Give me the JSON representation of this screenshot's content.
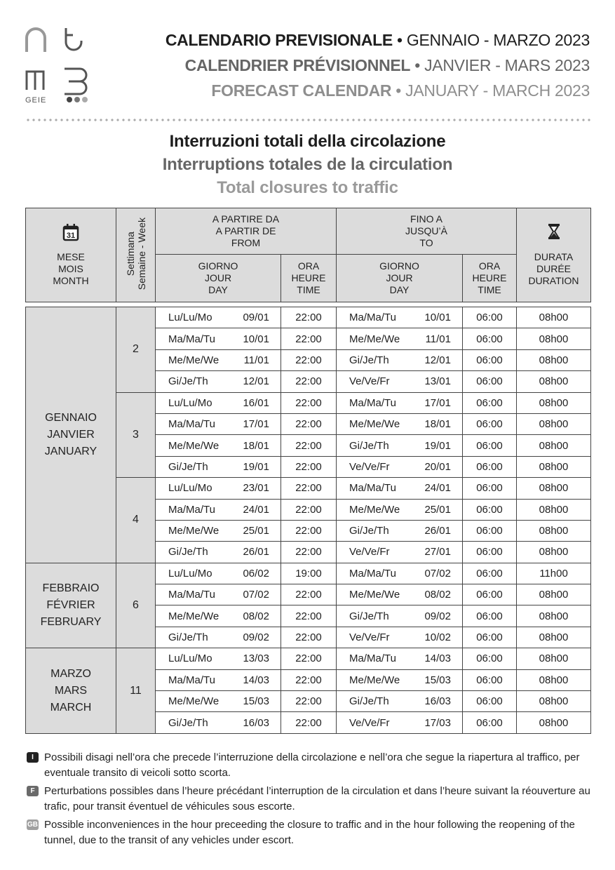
{
  "logo": {
    "text": "ntmb GEIE"
  },
  "header": [
    {
      "bold": "CALENDARIO PREVISIONALE",
      "rest": "• GENNAIO - MARZO 2023"
    },
    {
      "bold": "CALENDRIER PRÉVISIONNEL",
      "rest": "• JANVIER - MARS 2023"
    },
    {
      "bold": "FORECAST CALENDAR",
      "rest": "• JANUARY - MARCH 2023"
    }
  ],
  "titles": [
    "Interruzioni totali della circolazione",
    "Interruptions totales de la circulation",
    "Total closures to traffic"
  ],
  "table_header": {
    "month": [
      "MESE",
      "MOIS",
      "MONTH"
    ],
    "calendar_icon_text": "31",
    "week": [
      "Settimana",
      "Semaine - Week"
    ],
    "from": [
      "A PARTIRE DA",
      "A PARTIR DE",
      "FROM"
    ],
    "to": [
      "FINO A",
      "JUSQU’À",
      "TO"
    ],
    "day": [
      "GIORNO",
      "JOUR",
      "DAY"
    ],
    "time": [
      "ORA",
      "HEURE",
      "TIME"
    ],
    "duration": [
      "DURATA",
      "DURÉE",
      "DURATION"
    ]
  },
  "months": [
    {
      "name": [
        "GENNAIO",
        "JANVIER",
        "JANUARY"
      ],
      "weeks": [
        {
          "week": "2",
          "rows": [
            [
              "Lu/Lu/Mo",
              "09/01",
              "22:00",
              "Ma/Ma/Tu",
              "10/01",
              "06:00",
              "08h00"
            ],
            [
              "Ma/Ma/Tu",
              "10/01",
              "22:00",
              "Me/Me/We",
              "11/01",
              "06:00",
              "08h00"
            ],
            [
              "Me/Me/We",
              "11/01",
              "22:00",
              "Gi/Je/Th",
              "12/01",
              "06:00",
              "08h00"
            ],
            [
              "Gi/Je/Th",
              "12/01",
              "22:00",
              "Ve/Ve/Fr",
              "13/01",
              "06:00",
              "08h00"
            ]
          ]
        },
        {
          "week": "3",
          "rows": [
            [
              "Lu/Lu/Mo",
              "16/01",
              "22:00",
              "Ma/Ma/Tu",
              "17/01",
              "06:00",
              "08h00"
            ],
            [
              "Ma/Ma/Tu",
              "17/01",
              "22:00",
              "Me/Me/We",
              "18/01",
              "06:00",
              "08h00"
            ],
            [
              "Me/Me/We",
              "18/01",
              "22:00",
              "Gi/Je/Th",
              "19/01",
              "06:00",
              "08h00"
            ],
            [
              "Gi/Je/Th",
              "19/01",
              "22:00",
              "Ve/Ve/Fr",
              "20/01",
              "06:00",
              "08h00"
            ]
          ]
        },
        {
          "week": "4",
          "rows": [
            [
              "Lu/Lu/Mo",
              "23/01",
              "22:00",
              "Ma/Ma/Tu",
              "24/01",
              "06:00",
              "08h00"
            ],
            [
              "Ma/Ma/Tu",
              "24/01",
              "22:00",
              "Me/Me/We",
              "25/01",
              "06:00",
              "08h00"
            ],
            [
              "Me/Me/We",
              "25/01",
              "22:00",
              "Gi/Je/Th",
              "26/01",
              "06:00",
              "08h00"
            ],
            [
              "Gi/Je/Th",
              "26/01",
              "22:00",
              "Ve/Ve/Fr",
              "27/01",
              "06:00",
              "08h00"
            ]
          ]
        }
      ]
    },
    {
      "name": [
        "FEBBRAIO",
        "FÉVRIER",
        "FEBRUARY"
      ],
      "weeks": [
        {
          "week": "6",
          "rows": [
            [
              "Lu/Lu/Mo",
              "06/02",
              "19:00",
              "Ma/Ma/Tu",
              "07/02",
              "06:00",
              "11h00"
            ],
            [
              "Ma/Ma/Tu",
              "07/02",
              "22:00",
              "Me/Me/We",
              "08/02",
              "06:00",
              "08h00"
            ],
            [
              "Me/Me/We",
              "08/02",
              "22:00",
              "Gi/Je/Th",
              "09/02",
              "06:00",
              "08h00"
            ],
            [
              "Gi/Je/Th",
              "09/02",
              "22:00",
              "Ve/Ve/Fr",
              "10/02",
              "06:00",
              "08h00"
            ]
          ]
        }
      ]
    },
    {
      "name": [
        "MARZO",
        "MARS",
        "MARCH"
      ],
      "weeks": [
        {
          "week": "11",
          "rows": [
            [
              "Lu/Lu/Mo",
              "13/03",
              "22:00",
              "Ma/Ma/Tu",
              "14/03",
              "06:00",
              "08h00"
            ],
            [
              "Ma/Ma/Tu",
              "14/03",
              "22:00",
              "Me/Me/We",
              "15/03",
              "06:00",
              "08h00"
            ],
            [
              "Me/Me/We",
              "15/03",
              "22:00",
              "Gi/Je/Th",
              "16/03",
              "06:00",
              "08h00"
            ],
            [
              "Gi/Je/Th",
              "16/03",
              "22:00",
              "Ve/Ve/Fr",
              "17/03",
              "06:00",
              "08h00"
            ]
          ]
        }
      ]
    }
  ],
  "notes": [
    {
      "badge": "I",
      "color": "#222222",
      "text": "Possibili disagi nell’ora che precede l’interruzione della circolazione e nell’ora che segue la riapertura al traffico, per eventuale transito di veicoli sotto scorta."
    },
    {
      "badge": "F",
      "color": "#6a6a6a",
      "text": "Perturbations possibles dans l’heure précédant l’interruption de la circulation et dans l’heure suivant la réouverture au trafic, pour transit éventuel de véhicules sous escorte."
    },
    {
      "badge": "GB",
      "color": "#a0a0a0",
      "text": "Possible inconveniences in the hour preceeding the closure to traffic and in the hour following the reopening of the tunnel, due to the transit of any vehicles under escort."
    }
  ]
}
